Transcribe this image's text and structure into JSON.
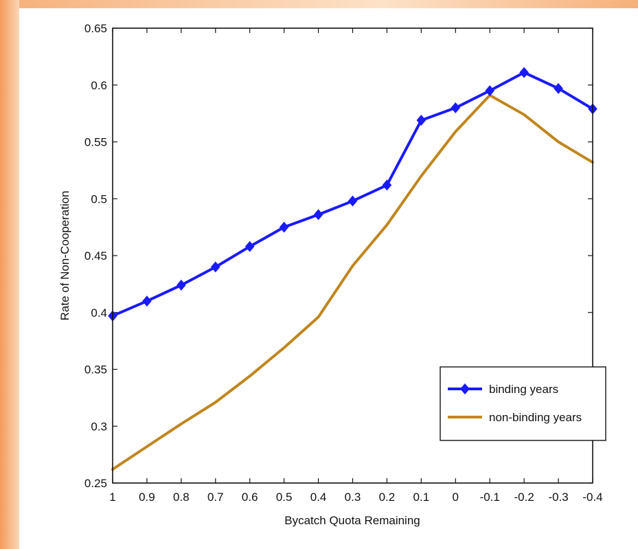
{
  "chart_data": {
    "type": "line",
    "title": "",
    "xlabel": "Bycatch Quota Remaining",
    "ylabel": "Rate of Non-Cooperation",
    "categories": [
      "1",
      "0.9",
      "0.8",
      "0.7",
      "0.6",
      "0.5",
      "0.4",
      "0.3",
      "0.2",
      "0.1",
      "0",
      "-0.1",
      "-0.2",
      "-0.3",
      "-0.4"
    ],
    "x": [
      1,
      0.9,
      0.8,
      0.7,
      0.6,
      0.5,
      0.4,
      0.3,
      0.2,
      0.1,
      0,
      -0.1,
      -0.2,
      -0.3,
      -0.4
    ],
    "ylim": [
      0.25,
      0.65
    ],
    "yticks": [
      "0.25",
      "0.3",
      "0.35",
      "0.4",
      "0.45",
      "0.5",
      "0.55",
      "0.6",
      "0.65"
    ],
    "ytick_values": [
      0.25,
      0.3,
      0.35,
      0.4,
      0.45,
      0.5,
      0.55,
      0.6,
      0.65
    ],
    "grid": false,
    "legend_position": "bottom-right",
    "series": [
      {
        "name": "binding years",
        "color": "#1a1aff",
        "marker": "diamond",
        "values": [
          0.397,
          0.41,
          0.424,
          0.44,
          0.458,
          0.475,
          0.486,
          0.498,
          0.512,
          0.569,
          0.58,
          0.595,
          0.611,
          0.597,
          0.579
        ]
      },
      {
        "name": "non-binding years",
        "color": "#c0861f",
        "marker": "none",
        "values": [
          0.262,
          0.282,
          0.302,
          0.321,
          0.344,
          0.369,
          0.396,
          0.441,
          0.477,
          0.52,
          0.559,
          0.591,
          0.574,
          0.55,
          0.532
        ]
      }
    ]
  }
}
